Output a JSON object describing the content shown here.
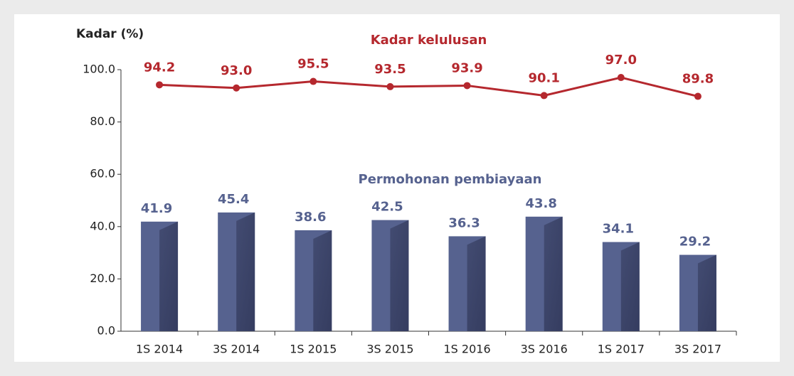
{
  "chart_data": {
    "type": "bar_line",
    "y_label": "Kadar (%)",
    "categories": [
      "1S 2014",
      "3S 2014",
      "1S 2015",
      "3S 2015",
      "1S 2016",
      "3S 2016",
      "1S 2017",
      "3S 2017"
    ],
    "series": [
      {
        "name": "Kadar kelulusan",
        "type": "line",
        "color": "#b5282e",
        "values": [
          94.2,
          93.0,
          95.5,
          93.5,
          93.9,
          90.1,
          97.0,
          89.8
        ],
        "value_labels": [
          "94.2",
          "93.0",
          "95.5",
          "93.5",
          "93.9",
          "90.1",
          "97.0",
          "89.8"
        ]
      },
      {
        "name": "Permohonan pembiayaan",
        "type": "bar",
        "color": "#56628f",
        "values": [
          41.9,
          45.4,
          38.6,
          42.5,
          36.3,
          43.8,
          34.1,
          29.2
        ],
        "value_labels": [
          "41.9",
          "45.4",
          "38.6",
          "42.5",
          "36.3",
          "43.8",
          "34.1",
          "29.2"
        ]
      }
    ],
    "ylim": [
      0,
      100
    ],
    "yticks": [
      {
        "value": 0,
        "label": "0.0"
      },
      {
        "value": 20,
        "label": "20.0"
      },
      {
        "value": 40,
        "label": "40.0"
      },
      {
        "value": 60,
        "label": "60.0"
      },
      {
        "value": 80,
        "label": "80.0"
      },
      {
        "value": 100,
        "label": "100.0"
      }
    ]
  }
}
